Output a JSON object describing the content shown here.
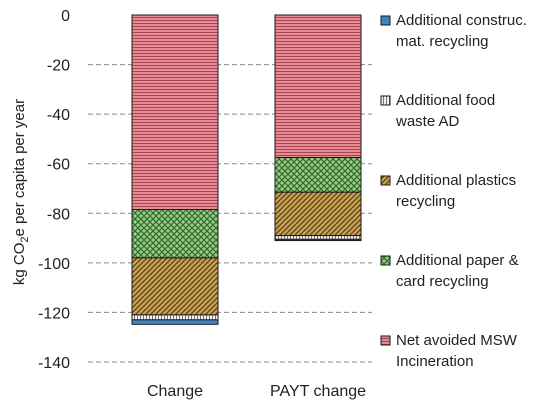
{
  "chart_data": {
    "type": "bar",
    "stacked": true,
    "categories": [
      "Change",
      "PAYT change"
    ],
    "ylabel_main": "kg CO",
    "ylabel_sub": "2",
    "ylabel_rest": "e per capita per year",
    "ylim": [
      -140,
      0
    ],
    "yticks": [
      0,
      -20,
      -40,
      -60,
      -80,
      -100,
      -120,
      -140
    ],
    "grid": true,
    "legend_position": "right",
    "series": [
      {
        "name_lines": [
          "Net avoided MSW",
          "Incineration"
        ],
        "values": [
          -78.5,
          -57.5
        ],
        "color": "#e58c96",
        "pattern": "hlines"
      },
      {
        "name_lines": [
          "Additional paper &",
          "card recycling"
        ],
        "values": [
          -19.5,
          -14
        ],
        "color": "#9bcc8a",
        "pattern": "check"
      },
      {
        "name_lines": [
          "Additional plastics",
          "recycling"
        ],
        "values": [
          -23,
          -17.5
        ],
        "color": "#c9a354",
        "pattern": "diag"
      },
      {
        "name_lines": [
          "Additional food",
          "waste AD"
        ],
        "values": [
          -2,
          -1.5
        ],
        "color": "#dcdcdc",
        "pattern": "vlines"
      },
      {
        "name_lines": [
          "Additional construc.",
          "mat. recycling"
        ],
        "values": [
          -1.8,
          -0.5
        ],
        "color": "#3a87c8",
        "pattern": "solid"
      }
    ]
  }
}
